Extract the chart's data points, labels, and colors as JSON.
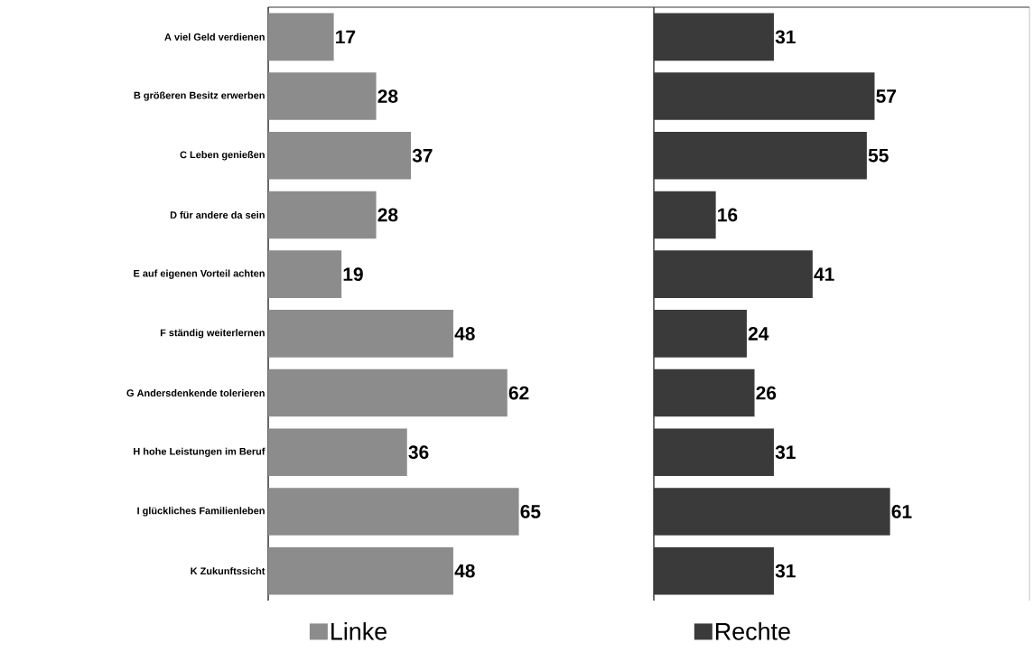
{
  "chart_data": [
    {
      "type": "bar",
      "orientation": "horizontal",
      "categories": [
        "A viel Geld verdienen",
        "B größeren Besitz erwerben",
        "C Leben genießen",
        "D für andere da sein",
        "E auf eigenen Vorteil achten",
        "F ständig weiterlernen",
        "G Andersdenkende tolerieren",
        "H hohe Leistungen im Beruf",
        "I glückliches Familienleben",
        "K Zukunftssicht"
      ],
      "series": [
        {
          "name": "Linke",
          "color": "#8c8c8c",
          "values": [
            17,
            28,
            37,
            28,
            19,
            48,
            62,
            36,
            65,
            48
          ]
        }
      ],
      "xlim": [
        0,
        100
      ],
      "data_labels": true,
      "legend": "bottom",
      "tick_labels": "y"
    },
    {
      "type": "bar",
      "orientation": "horizontal",
      "categories": [
        null,
        null,
        null,
        null,
        null,
        null,
        null,
        null,
        null,
        null
      ],
      "series": [
        {
          "name": "Rechte",
          "color": "#3a3a3a",
          "values": [
            31,
            57,
            55,
            16,
            41,
            24,
            26,
            31,
            61,
            31
          ]
        }
      ],
      "xlim": [
        0,
        97
      ],
      "data_labels": true,
      "legend": "bottom"
    }
  ]
}
